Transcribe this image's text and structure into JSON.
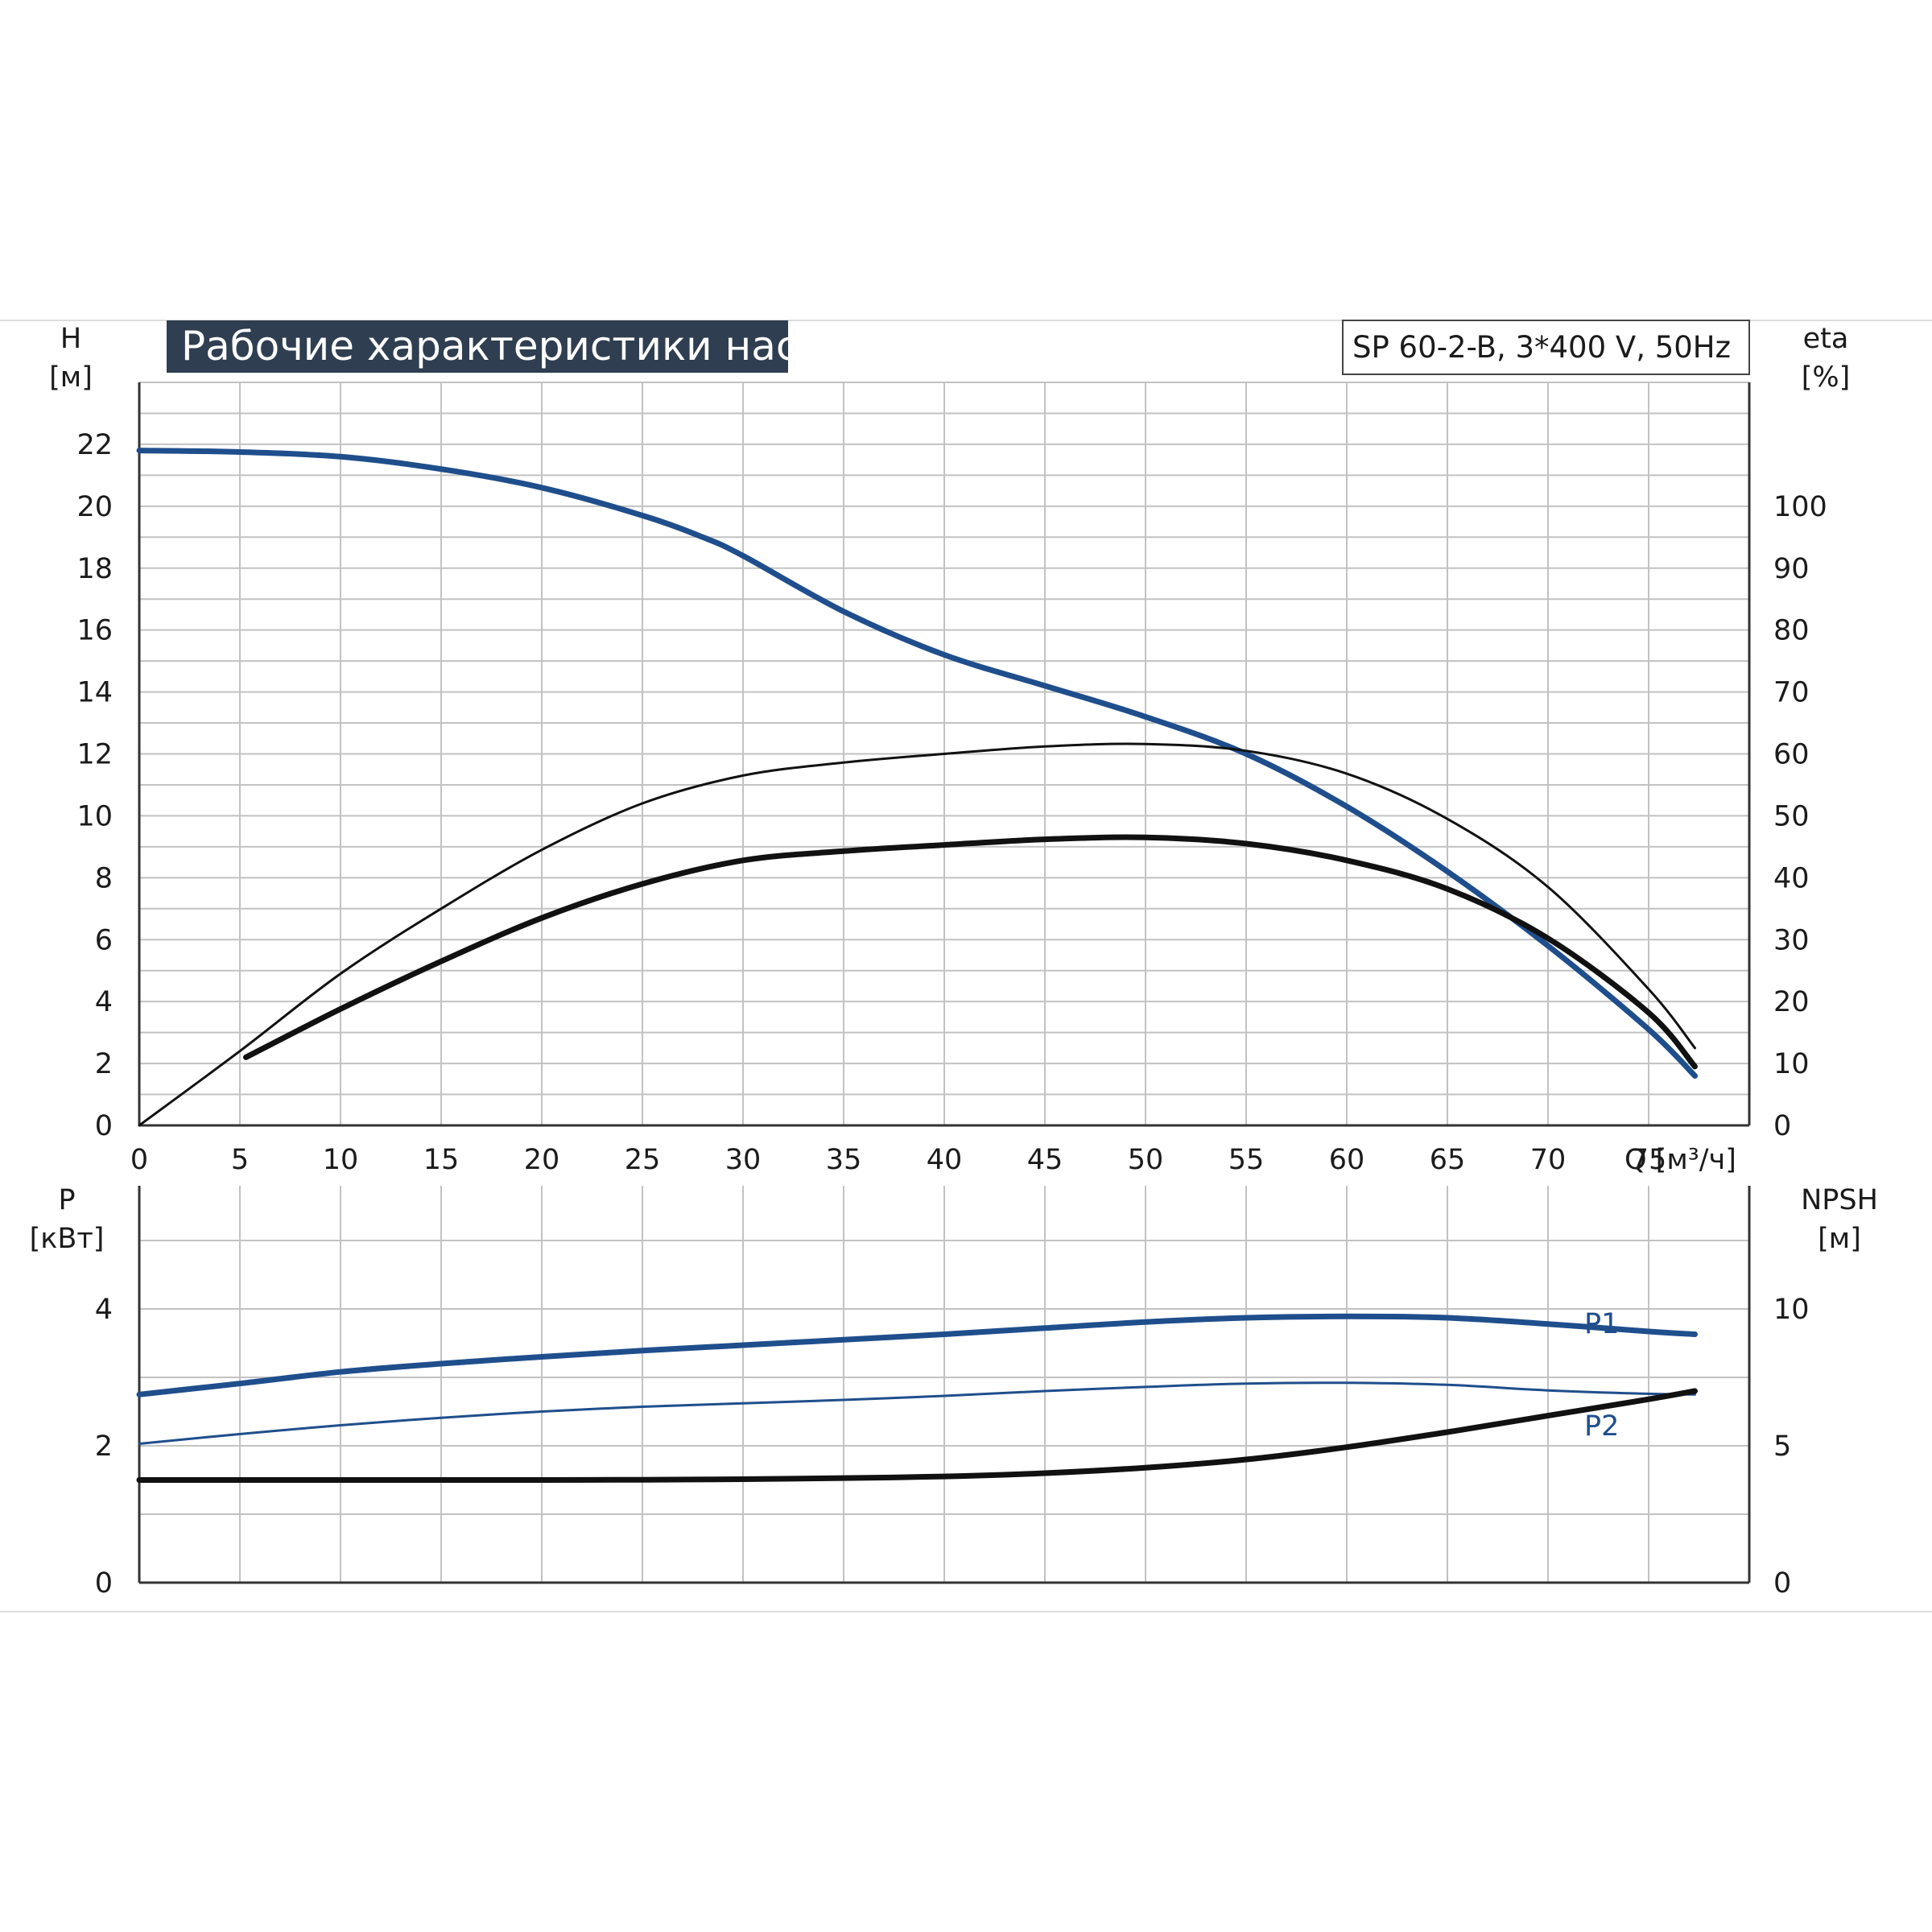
{
  "chart_data": [
    {
      "type": "line",
      "title": "Рабочие характеристики насоса",
      "model": "SP 60-2-B, 3*400 V, 50Hz",
      "xlabel": "Q [м³/ч]",
      "ylabel": "H",
      "ylabel_unit": "[м]",
      "y2label": "eta",
      "y2label_unit": "[%]",
      "xlim": [
        0,
        80
      ],
      "ylim": [
        0,
        24
      ],
      "y2lim": [
        0,
        120
      ],
      "x_ticks": [
        "0",
        "5",
        "10",
        "15",
        "20",
        "25",
        "30",
        "35",
        "40",
        "45",
        "50",
        "55",
        "60",
        "65",
        "70",
        "75"
      ],
      "y_ticks": [
        "0",
        "2",
        "4",
        "6",
        "8",
        "10",
        "12",
        "14",
        "16",
        "18",
        "20",
        "22"
      ],
      "y2_ticks": [
        "0",
        "10",
        "20",
        "30",
        "40",
        "50",
        "60",
        "70",
        "80",
        "90",
        "100"
      ],
      "grid": true,
      "series": [
        {
          "axis": "left",
          "color": "#1f4e8c",
          "weight": "thick",
          "x": [
            0,
            5,
            10,
            15,
            20,
            25,
            28,
            30,
            35,
            40,
            45,
            50,
            55,
            60,
            65,
            70,
            75,
            77.3
          ],
          "y": [
            21.8,
            21.75,
            21.6,
            21.2,
            20.6,
            19.7,
            19.0,
            18.4,
            16.6,
            15.2,
            14.2,
            13.2,
            12.0,
            10.3,
            8.2,
            5.8,
            3.1,
            1.6
          ]
        },
        {
          "axis": "right",
          "color": "#111111",
          "weight": "thin",
          "x": [
            0,
            5,
            10,
            15,
            20,
            25,
            30,
            35,
            40,
            45,
            50,
            55,
            60,
            65,
            70,
            75,
            77.3
          ],
          "y": [
            0,
            12,
            24.5,
            35,
            44.5,
            52,
            56.5,
            58.6,
            60,
            61.2,
            61.6,
            60.5,
            56.8,
            49.5,
            38.5,
            22,
            12.5
          ]
        },
        {
          "axis": "right",
          "color": "#111111",
          "weight": "thick",
          "x": [
            5.3,
            10,
            15,
            20,
            25,
            30,
            35,
            40,
            45,
            50,
            55,
            60,
            65,
            70,
            75,
            77.3
          ],
          "y": [
            11,
            18.8,
            26.5,
            33.5,
            39,
            42.8,
            44.3,
            45.3,
            46.2,
            46.5,
            45.5,
            42.8,
            38.2,
            30.2,
            18.2,
            9.5
          ]
        }
      ]
    },
    {
      "type": "line",
      "xlim": [
        0,
        80
      ],
      "ylabel": "P",
      "ylabel_unit": "[кВт]",
      "y2label": "NPSH",
      "y2label_unit": "[м]",
      "ylim": [
        0,
        5.8
      ],
      "y2lim": [
        0,
        14.5
      ],
      "y_ticks": [
        "0",
        "2",
        "4"
      ],
      "y2_ticks": [
        "0",
        "5",
        "10"
      ],
      "grid": true,
      "series": [
        {
          "name": "P1",
          "axis": "left",
          "color": "#1f4e8c",
          "weight": "thick",
          "x": [
            0,
            5.3,
            10,
            15,
            20,
            25,
            30,
            35,
            40,
            45,
            50,
            55,
            60,
            65,
            70,
            75,
            77.3
          ],
          "y": [
            2.75,
            2.92,
            3.08,
            3.2,
            3.3,
            3.39,
            3.47,
            3.55,
            3.63,
            3.72,
            3.81,
            3.87,
            3.89,
            3.87,
            3.78,
            3.67,
            3.63
          ]
        },
        {
          "name": "P2",
          "axis": "left",
          "color": "#1f4e8c",
          "weight": "thin",
          "x": [
            0,
            5.3,
            10,
            15,
            20,
            25,
            30,
            35,
            40,
            45,
            50,
            55,
            60,
            65,
            70,
            75,
            77.3
          ],
          "y": [
            2.03,
            2.18,
            2.3,
            2.41,
            2.5,
            2.57,
            2.62,
            2.67,
            2.73,
            2.8,
            2.86,
            2.91,
            2.92,
            2.89,
            2.81,
            2.76,
            2.75
          ]
        },
        {
          "axis": "right",
          "color": "#111111",
          "weight": "thick",
          "x": [
            0,
            5.3,
            10,
            15,
            20,
            25,
            30,
            35,
            40,
            45,
            50,
            55,
            60,
            65,
            70,
            75,
            77.3
          ],
          "y": [
            3.75,
            3.75,
            3.75,
            3.75,
            3.75,
            3.76,
            3.78,
            3.82,
            3.88,
            4.0,
            4.2,
            4.5,
            4.95,
            5.5,
            6.1,
            6.7,
            7.0
          ]
        }
      ]
    }
  ]
}
